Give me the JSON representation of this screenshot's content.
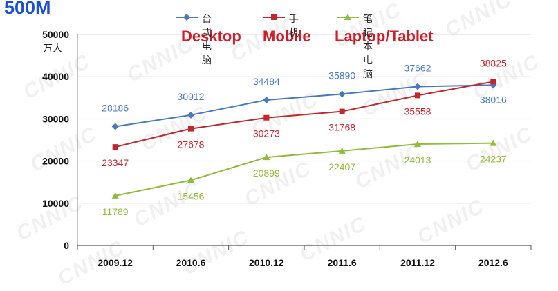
{
  "unit_big": "500M",
  "unit_cn": "万人",
  "english_labels": {
    "desktop": "Desktop",
    "mobile": "Mobile",
    "laptop": "Laptop/Tablet"
  },
  "watermark_text": "CNNIC",
  "colors": {
    "desktop": "#4a78c0",
    "mobile": "#c0282e",
    "laptop": "#8ebb3c",
    "unit_blue": "#1d4fd6",
    "english_red": "#cc1f2a"
  },
  "chart_data": {
    "type": "line",
    "categories": [
      "2009.12",
      "2010.6",
      "2010.12",
      "2011.6",
      "2011.12",
      "2012.6"
    ],
    "ylim": [
      0,
      50000
    ],
    "yticks": [
      0,
      10000,
      20000,
      30000,
      40000,
      50000
    ],
    "grid": true,
    "legend_position": "top",
    "series": [
      {
        "key": "desktop",
        "name": "台式电脑",
        "values": [
          28186,
          30912,
          34484,
          35890,
          37662,
          38016
        ]
      },
      {
        "key": "mobile",
        "name": "手机",
        "values": [
          23347,
          27678,
          30273,
          31768,
          35558,
          38825
        ]
      },
      {
        "key": "laptop",
        "name": "笔记本电脑",
        "values": [
          11789,
          15456,
          20899,
          22407,
          24013,
          24237
        ]
      }
    ]
  }
}
